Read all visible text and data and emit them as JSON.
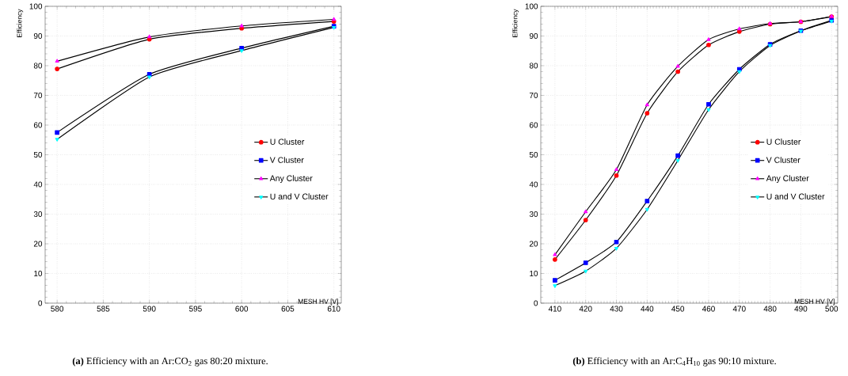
{
  "chart_data": [
    {
      "type": "line",
      "xlabel": "MESH HV [V]",
      "ylabel": "Efficiency",
      "x": [
        580,
        590,
        600,
        610
      ],
      "xlim": [
        578.7,
        610.8
      ],
      "xticks": [
        580,
        585,
        590,
        595,
        600,
        605,
        610
      ],
      "ylim": [
        0,
        100
      ],
      "yticks": [
        0,
        10,
        20,
        30,
        40,
        50,
        60,
        70,
        80,
        90,
        100
      ],
      "grid": true,
      "legend": "right",
      "line_style": "solid",
      "series": [
        {
          "name": "U Cluster",
          "color": "#ff0000",
          "marker": "circle",
          "values": [
            78.9,
            88.9,
            92.6,
            94.9
          ]
        },
        {
          "name": "V Cluster",
          "color": "#0000ff",
          "marker": "square",
          "values": [
            57.5,
            77.1,
            85.9,
            93.3
          ]
        },
        {
          "name": "Any Cluster",
          "color": "#ff00ff",
          "marker": "triangle",
          "values": [
            81.5,
            89.7,
            93.4,
            95.6
          ]
        },
        {
          "name": "U and V Cluster",
          "color": "#00ffff",
          "marker": "triangle-down",
          "values": [
            55.2,
            76.2,
            85.1,
            92.9
          ]
        }
      ],
      "annotations": [
        "**(a)** Efficiency with an Ar:CO$_{2}$ gas 80:20 mixture."
      ]
    },
    {
      "type": "line",
      "xlabel": "MESH HV [V]",
      "ylabel": "Efficiency",
      "x": [
        410,
        420,
        430,
        440,
        450,
        460,
        470,
        480,
        490,
        500
      ],
      "xlim": [
        405.4,
        502
      ],
      "xticks": [
        410,
        420,
        430,
        440,
        450,
        460,
        470,
        480,
        490,
        500
      ],
      "ylim": [
        0,
        100
      ],
      "yticks": [
        0,
        10,
        20,
        30,
        40,
        50,
        60,
        70,
        80,
        90,
        100
      ],
      "grid": true,
      "legend": "right",
      "line_style": "solid",
      "series": [
        {
          "name": "U Cluster",
          "color": "#ff0000",
          "marker": "circle",
          "values": [
            14.7,
            28,
            43,
            64,
            78,
            87,
            91.5,
            94,
            94.8,
            96.5
          ]
        },
        {
          "name": "V Cluster",
          "color": "#0000ff",
          "marker": "square",
          "values": [
            7.7,
            13.6,
            20.6,
            34.4,
            49.7,
            67,
            78.8,
            87.2,
            91.8,
            95.3
          ]
        },
        {
          "name": "Any Cluster",
          "color": "#ff00ff",
          "marker": "triangle",
          "values": [
            16.3,
            30.8,
            45,
            66.8,
            79.8,
            88.8,
            92.4,
            94.2,
            94.8,
            96.6
          ]
        },
        {
          "name": "U and V Cluster",
          "color": "#00ffff",
          "marker": "triangle-down",
          "values": [
            5.9,
            10.8,
            18.5,
            31.6,
            48.1,
            65.2,
            78,
            86.8,
            91.7,
            95
          ]
        }
      ],
      "annotations": [
        "**(b)** Efficiency with an Ar:C$_{4}$H$_{10}$ gas 90:10 mixture."
      ]
    }
  ]
}
